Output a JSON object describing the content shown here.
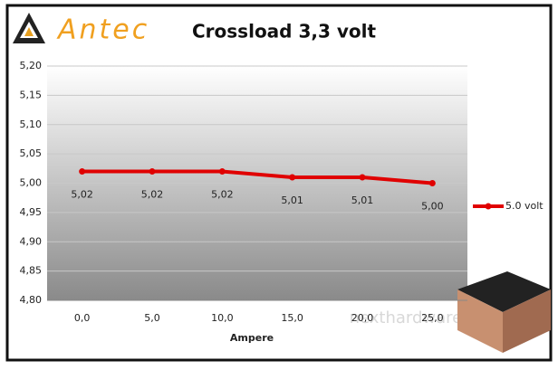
{
  "chart_data": {
    "type": "line",
    "logo": "Antec",
    "title": "Crossload 3,3 volt",
    "x_label": "Ampere",
    "categories": [
      "0,0",
      "5,0",
      "10,0",
      "15,0",
      "20,0",
      "25,0"
    ],
    "series": [
      {
        "name": "5.0 volt",
        "color": "#e00000",
        "values": [
          5.02,
          5.02,
          5.02,
          5.01,
          5.01,
          5.0
        ],
        "value_labels": [
          "5,02",
          "5,02",
          "5,02",
          "5,01",
          "5,01",
          "5,00"
        ]
      }
    ],
    "ylim": [
      4.8,
      5.2
    ],
    "yticks": [
      {
        "value": 4.8,
        "label": "4,80"
      },
      {
        "value": 4.85,
        "label": "4,85"
      },
      {
        "value": 4.9,
        "label": "4,90"
      },
      {
        "value": 4.95,
        "label": "4,95"
      },
      {
        "value": 5.0,
        "label": "5,00"
      },
      {
        "value": 5.05,
        "label": "5,05"
      },
      {
        "value": 5.1,
        "label": "5,10"
      },
      {
        "value": 5.15,
        "label": "5,15"
      },
      {
        "value": 5.2,
        "label": "5,20"
      }
    ],
    "grid": true,
    "legend": "right",
    "watermark": "nexthardware.com"
  }
}
